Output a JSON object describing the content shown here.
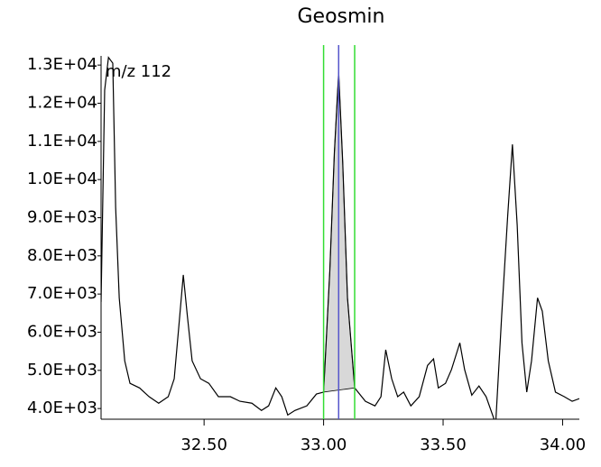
{
  "chart_data": {
    "type": "line",
    "title": "Geosmin",
    "annotation": "m/z 112",
    "x": [
      32.069,
      32.084,
      32.1,
      32.118,
      32.13,
      32.145,
      32.168,
      32.19,
      32.23,
      32.27,
      32.31,
      32.35,
      32.375,
      32.395,
      32.413,
      32.43,
      32.45,
      32.485,
      32.52,
      32.56,
      32.61,
      32.65,
      32.7,
      32.74,
      32.77,
      32.8,
      32.825,
      32.85,
      32.88,
      32.93,
      32.97,
      33.0,
      33.026,
      33.045,
      33.063,
      33.08,
      33.1,
      33.13,
      33.175,
      33.215,
      33.24,
      33.26,
      33.285,
      33.31,
      33.335,
      33.365,
      33.4,
      33.435,
      33.46,
      33.48,
      33.51,
      33.535,
      33.57,
      33.59,
      33.62,
      33.65,
      33.68,
      33.72,
      33.745,
      33.77,
      33.79,
      33.81,
      33.83,
      33.85,
      33.87,
      33.895,
      33.915,
      33.94,
      33.97,
      34.007,
      34.04,
      34.07
    ],
    "values": [
      6790,
      12340,
      13200,
      13050,
      9270,
      6900,
      5250,
      4660,
      4540,
      4310,
      4140,
      4310,
      4780,
      6200,
      7500,
      6430,
      5250,
      4780,
      4660,
      4310,
      4310,
      4190,
      4140,
      3950,
      4070,
      4540,
      4310,
      3830,
      3950,
      4070,
      4380,
      4430,
      7610,
      10690,
      12810,
      10450,
      6900,
      4540,
      4190,
      4070,
      4310,
      5540,
      4780,
      4310,
      4430,
      4070,
      4310,
      5130,
      5300,
      4540,
      4660,
      5020,
      5720,
      5020,
      4350,
      4590,
      4310,
      3600,
      6430,
      9030,
      10920,
      8800,
      5720,
      4430,
      5250,
      6900,
      6550,
      5250,
      4430,
      4310,
      4190,
      4260
    ],
    "color": "#000000",
    "window": [
      33.0,
      33.13
    ],
    "window_color": "#33dd33",
    "apex": 33.063,
    "apex_color": "#5555cc",
    "area_color": "#d8d8d8",
    "xlim": [
      32.069,
      34.07
    ],
    "ylim": [
      3720,
      13240
    ],
    "xticks": [
      {
        "value": 32.5,
        "label": "32.50"
      },
      {
        "value": 33.0,
        "label": "33.00"
      },
      {
        "value": 33.5,
        "label": "33.50"
      },
      {
        "value": 34.0,
        "label": "34.00"
      }
    ],
    "yticks": [
      {
        "value": 4000,
        "label": "4.0E+03"
      },
      {
        "value": 5000,
        "label": "5.0E+03"
      },
      {
        "value": 6000,
        "label": "6.0E+03"
      },
      {
        "value": 7000,
        "label": "7.0E+03"
      },
      {
        "value": 8000,
        "label": "8.0E+03"
      },
      {
        "value": 9000,
        "label": "9.0E+03"
      },
      {
        "value": 10000,
        "label": "1.0E+04"
      },
      {
        "value": 11000,
        "label": "1.1E+04"
      },
      {
        "value": 12000,
        "label": "1.2E+04"
      },
      {
        "value": 13000,
        "label": "1.3E+04"
      }
    ]
  }
}
